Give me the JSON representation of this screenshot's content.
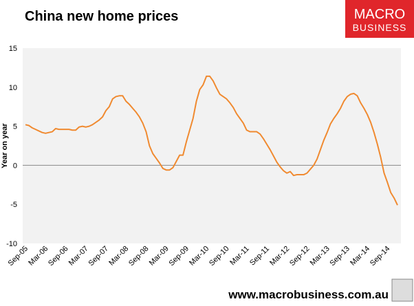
{
  "chart_data": {
    "type": "line",
    "title": "China new home prices",
    "ylabel": "Year on year",
    "logo": [
      "MACRO",
      "BUSINESS"
    ],
    "footer": "www.macrobusiness.com.au",
    "categories": [
      "Sep-05",
      null,
      null,
      null,
      null,
      null,
      "Mar-06",
      null,
      null,
      null,
      null,
      null,
      "Sep-06",
      null,
      null,
      null,
      null,
      null,
      "Mar-07",
      null,
      null,
      null,
      null,
      null,
      "Sep-07",
      null,
      null,
      null,
      null,
      null,
      "Mar-08",
      null,
      null,
      null,
      null,
      null,
      "Sep-08",
      null,
      null,
      null,
      null,
      null,
      "Mar-09",
      null,
      null,
      null,
      null,
      null,
      "Sep-09",
      null,
      null,
      null,
      null,
      null,
      "Mar-10",
      null,
      null,
      null,
      null,
      null,
      "Sep-10",
      null,
      null,
      null,
      null,
      null,
      "Mar-11",
      null,
      null,
      null,
      null,
      null,
      "Sep-11",
      null,
      null,
      null,
      null,
      null,
      "Mar-12",
      null,
      null,
      null,
      null,
      null,
      "Sep-12",
      null,
      null,
      null,
      null,
      null,
      "Mar-13",
      null,
      null,
      null,
      null,
      null,
      "Sep-13",
      null,
      null,
      null,
      null,
      null,
      "Mar-14",
      null,
      null,
      null,
      null,
      null,
      "Sep-14",
      null,
      null,
      null
    ],
    "series": [
      {
        "name": "China new home prices",
        "color": "#f08a30",
        "values": [
          5.2,
          5.1,
          4.8,
          4.6,
          4.4,
          4.2,
          4.1,
          4.2,
          4.3,
          4.7,
          4.6,
          4.6,
          4.6,
          4.6,
          4.5,
          4.5,
          4.9,
          5.0,
          4.9,
          5.0,
          5.2,
          5.5,
          5.8,
          6.2,
          7.0,
          7.5,
          8.5,
          8.8,
          8.9,
          8.9,
          8.2,
          7.8,
          7.3,
          6.8,
          6.2,
          5.4,
          4.3,
          2.5,
          1.5,
          0.9,
          0.3,
          -0.4,
          -0.6,
          -0.6,
          -0.3,
          0.5,
          1.3,
          1.3,
          3.0,
          4.5,
          6.0,
          8.2,
          9.7,
          10.3,
          11.4,
          11.4,
          10.8,
          9.9,
          9.1,
          8.8,
          8.5,
          8.0,
          7.4,
          6.6,
          6.0,
          5.4,
          4.5,
          4.3,
          4.3,
          4.3,
          4.0,
          3.4,
          2.7,
          2.0,
          1.2,
          0.4,
          -0.2,
          -0.7,
          -1.0,
          -0.8,
          -1.3,
          -1.2,
          -1.2,
          -1.2,
          -1.0,
          -0.5,
          0.0,
          0.8,
          2.0,
          3.2,
          4.2,
          5.3,
          6.0,
          6.6,
          7.3,
          8.2,
          8.8,
          9.1,
          9.2,
          8.9,
          8.0,
          7.3,
          6.5,
          5.5,
          4.2,
          2.7,
          1.0,
          -1.0,
          -2.2,
          -3.5,
          -4.2,
          -5.1
        ]
      }
    ],
    "ylim": [
      -10,
      15
    ],
    "yticks": [
      -10,
      -5,
      0,
      5,
      10,
      15
    ],
    "grid": false
  }
}
